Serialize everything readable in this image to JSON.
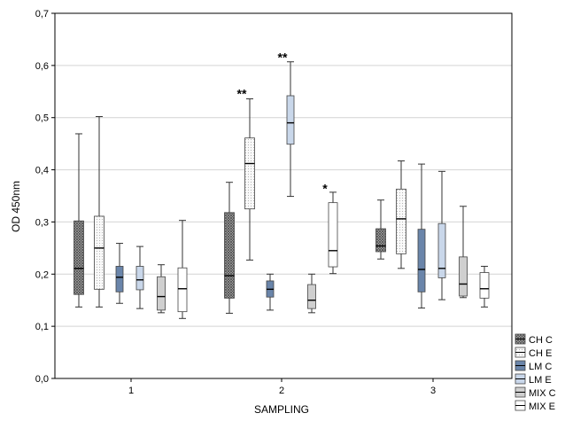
{
  "chart_data": {
    "type": "boxplot",
    "xlabel": "SAMPLING",
    "ylabel": "OD 450nm",
    "ylim": [
      0,
      0.7
    ],
    "yticks": [
      "0,0",
      "0,1",
      "0,2",
      "0,3",
      "0,4",
      "0,5",
      "0,6",
      "0,7"
    ],
    "grid": true,
    "legend_position": "bottom-right",
    "categories": [
      "1",
      "2",
      "3"
    ],
    "series": [
      {
        "name": "CH C",
        "pattern": "crosshatch",
        "color": "#8c8c8c",
        "boxes": [
          {
            "min": 0.137,
            "q1": 0.161,
            "median": 0.211,
            "q3": 0.302,
            "max": 0.469
          },
          {
            "min": 0.125,
            "q1": 0.154,
            "median": 0.197,
            "q3": 0.318,
            "max": 0.376
          },
          {
            "min": 0.229,
            "q1": 0.243,
            "median": 0.254,
            "q3": 0.287,
            "max": 0.342
          }
        ]
      },
      {
        "name": "CH E",
        "pattern": "dots",
        "color": "#f4f4f4",
        "boxes": [
          {
            "min": 0.137,
            "q1": 0.171,
            "median": 0.25,
            "q3": 0.311,
            "max": 0.502
          },
          {
            "min": 0.227,
            "q1": 0.325,
            "median": 0.412,
            "q3": 0.461,
            "max": 0.536
          },
          {
            "min": 0.211,
            "q1": 0.239,
            "median": 0.306,
            "q3": 0.363,
            "max": 0.417
          }
        ]
      },
      {
        "name": "LM C",
        "pattern": "solid",
        "color": "#6a85aa",
        "boxes": [
          {
            "min": 0.144,
            "q1": 0.166,
            "median": 0.194,
            "q3": 0.215,
            "max": 0.259
          },
          {
            "min": 0.131,
            "q1": 0.156,
            "median": 0.171,
            "q3": 0.187,
            "max": 0.2
          },
          {
            "min": 0.135,
            "q1": 0.166,
            "median": 0.209,
            "q3": 0.286,
            "max": 0.411
          }
        ]
      },
      {
        "name": "LM E",
        "pattern": "solid",
        "color": "#c9d7ea",
        "boxes": [
          {
            "min": 0.134,
            "q1": 0.17,
            "median": 0.189,
            "q3": 0.215,
            "max": 0.253
          },
          {
            "min": 0.349,
            "q1": 0.449,
            "median": 0.49,
            "q3": 0.542,
            "max": 0.607
          },
          {
            "min": 0.151,
            "q1": 0.193,
            "median": 0.211,
            "q3": 0.297,
            "max": 0.397
          }
        ]
      },
      {
        "name": "MIX C",
        "pattern": "solid",
        "color": "#cfcfcf",
        "boxes": [
          {
            "min": 0.126,
            "q1": 0.131,
            "median": 0.157,
            "q3": 0.195,
            "max": 0.218
          },
          {
            "min": 0.126,
            "q1": 0.134,
            "median": 0.15,
            "q3": 0.18,
            "max": 0.2
          },
          {
            "min": 0.155,
            "q1": 0.158,
            "median": 0.181,
            "q3": 0.233,
            "max": 0.33
          }
        ]
      },
      {
        "name": "MIX E",
        "pattern": "solid",
        "color": "#ffffff",
        "boxes": [
          {
            "min": 0.115,
            "q1": 0.128,
            "median": 0.172,
            "q3": 0.212,
            "max": 0.303
          },
          {
            "min": 0.201,
            "q1": 0.214,
            "median": 0.245,
            "q3": 0.337,
            "max": 0.357
          },
          {
            "min": 0.137,
            "q1": 0.154,
            "median": 0.172,
            "q3": 0.203,
            "max": 0.215
          }
        ]
      }
    ],
    "annotations": [
      {
        "text": "**",
        "category": "2",
        "series": "CH E",
        "y": 0.548
      },
      {
        "text": "**",
        "category": "2",
        "series": "LM E",
        "y": 0.618
      },
      {
        "text": "*",
        "category": "2",
        "series": "MIX E",
        "y": 0.366
      }
    ]
  }
}
